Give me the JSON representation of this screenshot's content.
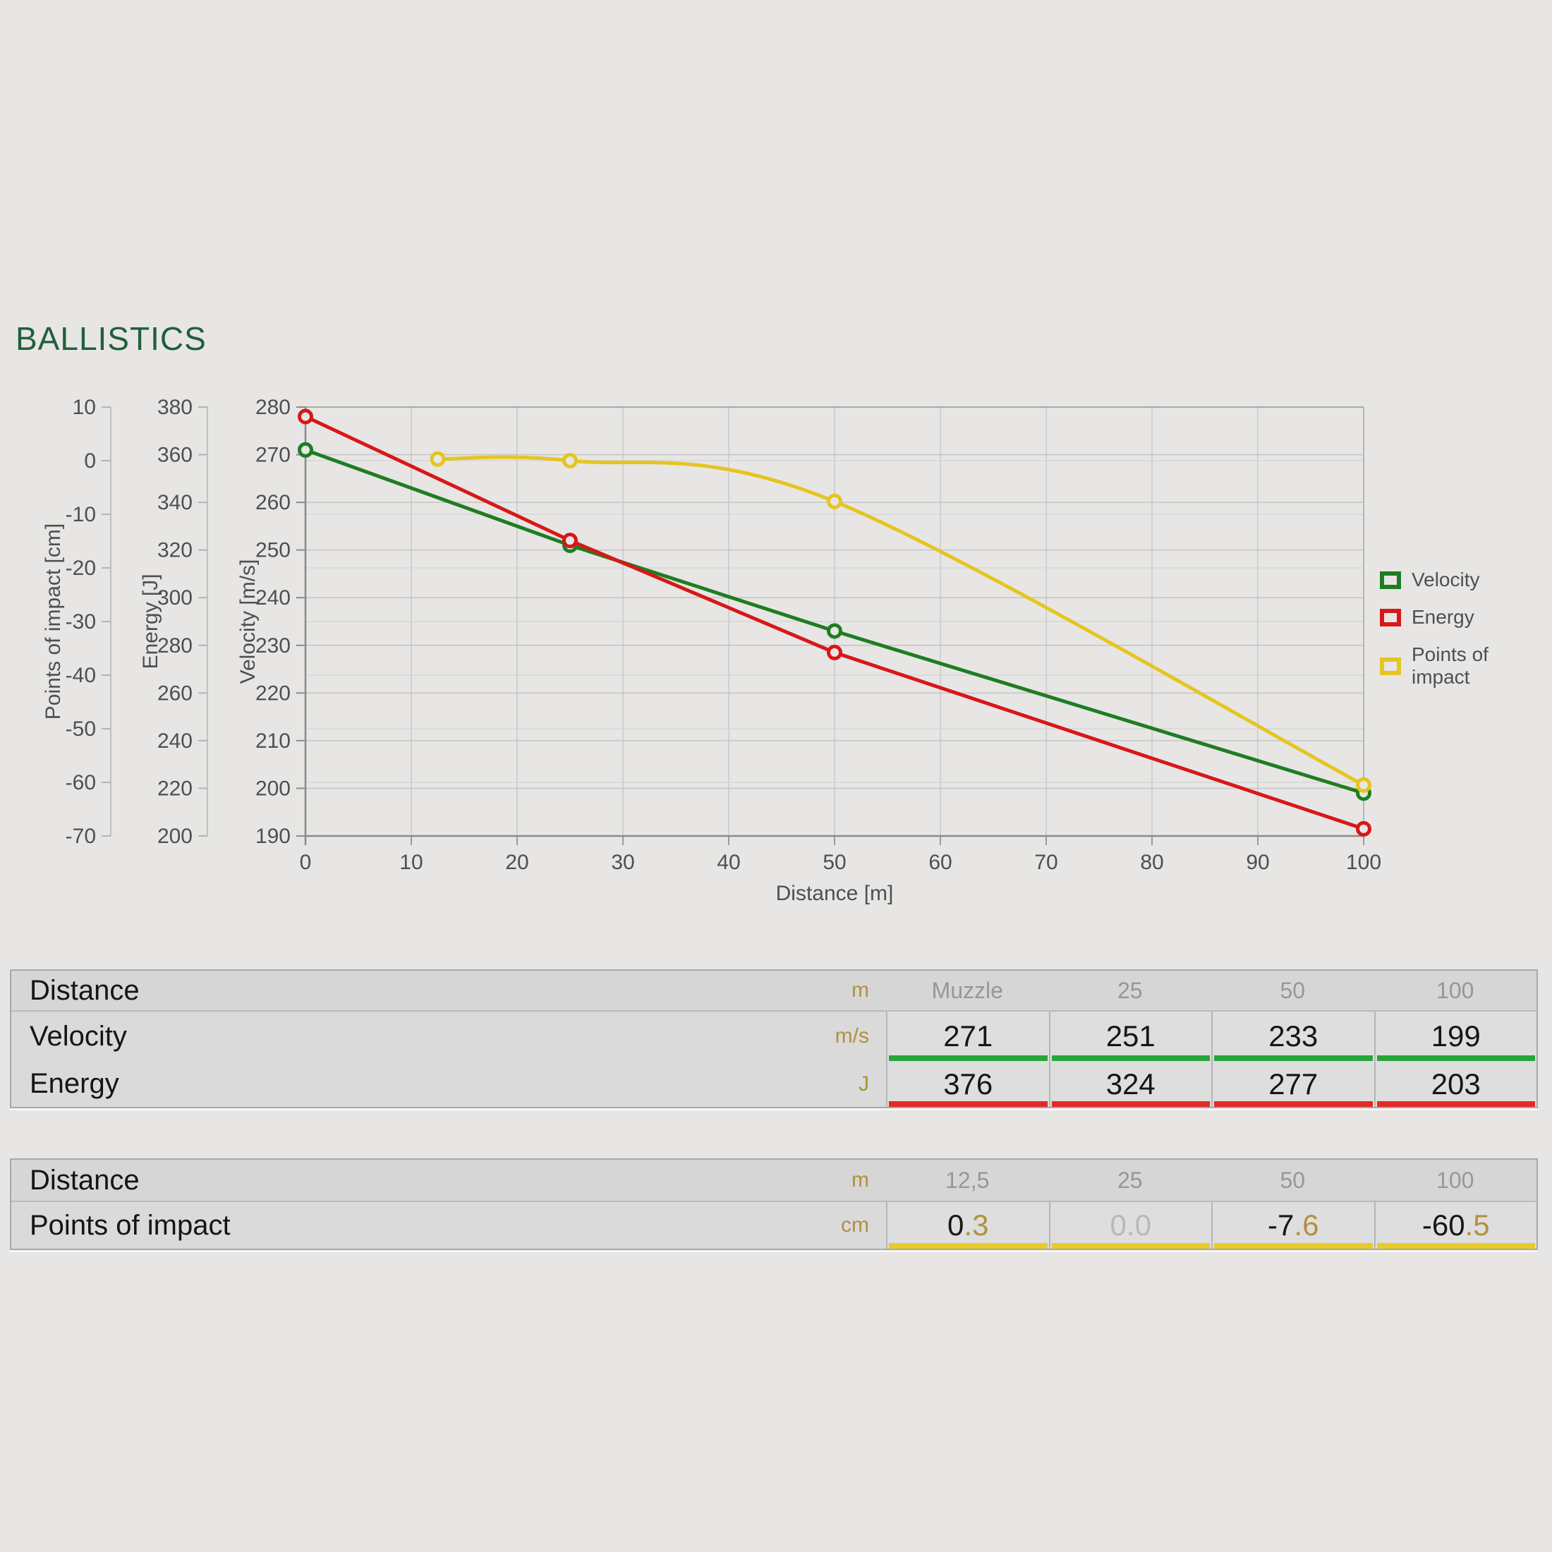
{
  "title": "BALLISTICS",
  "colors": {
    "title_green": "#20603c",
    "velocity": "#1e7d22",
    "energy": "#d81717",
    "poi": "#e5c51f",
    "velocity_bar": "#28a53a",
    "energy_bar": "#e22a26",
    "poi_bar": "#e8cb28",
    "unit_gold": "#b2903e",
    "muted_value": "#b9b9b9",
    "grid_major": "#c3c3c3",
    "grid_minor": "#d6d6d6"
  },
  "chart_data": {
    "type": "line",
    "title": "",
    "xlabel": "Distance [m]",
    "x_range": [
      0,
      100
    ],
    "x_ticks": [
      0,
      10,
      20,
      30,
      40,
      50,
      60,
      70,
      80,
      90,
      100
    ],
    "grid": true,
    "legend_position": "right",
    "axes": [
      {
        "label": "Points of impact [cm]",
        "range": [
          -70,
          10
        ],
        "ticks": [
          10,
          0,
          -10,
          -20,
          -30,
          -40,
          -50,
          -60,
          -70
        ]
      },
      {
        "label": "Energy [J]",
        "range": [
          200,
          380
        ],
        "ticks": [
          380,
          360,
          340,
          320,
          300,
          280,
          260,
          240,
          220,
          200
        ]
      },
      {
        "label": "Velocity [m/s]",
        "range": [
          190,
          280
        ],
        "ticks": [
          280,
          270,
          260,
          250,
          240,
          230,
          220,
          210,
          200,
          190
        ]
      }
    ],
    "series": [
      {
        "name": "Velocity",
        "axis": "Velocity [m/s]",
        "color": "#1e7d22",
        "curve": "linear",
        "x": [
          0,
          25,
          50,
          100
        ],
        "values": [
          271,
          251,
          233,
          199
        ]
      },
      {
        "name": "Energy",
        "axis": "Energy [J]",
        "color": "#d81717",
        "curve": "linear",
        "x": [
          0,
          25,
          50,
          100
        ],
        "values": [
          376,
          324,
          277,
          203
        ]
      },
      {
        "name": "Points of impact",
        "axis": "Points of impact [cm]",
        "color": "#e5c51f",
        "curve": "smooth",
        "x": [
          12.5,
          25,
          50,
          100
        ],
        "values": [
          0.3,
          0.0,
          -7.6,
          -60.5
        ]
      }
    ]
  },
  "legend": [
    {
      "label": "Velocity",
      "color": "#1e7d22"
    },
    {
      "label": "Energy",
      "color": "#d81717"
    },
    {
      "label": "Points of impact",
      "color": "#e5c51f"
    }
  ],
  "tables": [
    {
      "header": {
        "label": "Distance",
        "unit": "m",
        "values": [
          "Muzzle",
          "25",
          "50",
          "100"
        ]
      },
      "rows": [
        {
          "label": "Velocity",
          "unit": "m/s",
          "values": [
            "271",
            "251",
            "233",
            "199"
          ],
          "bar_color": "#28a53a"
        },
        {
          "label": "Energy",
          "unit": "J",
          "values": [
            "376",
            "324",
            "277",
            "203"
          ],
          "bar_color": "#e22a26"
        }
      ]
    },
    {
      "header": {
        "label": "Distance",
        "unit": "m",
        "values": [
          "12,5",
          "25",
          "50",
          "100"
        ]
      },
      "rows": [
        {
          "label": "Points of impact",
          "unit": "cm",
          "bar_color": "#e8cb28",
          "values": [
            {
              "int": "0",
              "dec": ".3",
              "muted": false
            },
            {
              "int": "0",
              "dec": ".0",
              "muted": true
            },
            {
              "int": "-7",
              "dec": ".6",
              "muted": false
            },
            {
              "int": "-60",
              "dec": ".5",
              "muted": false
            }
          ]
        }
      ]
    }
  ]
}
